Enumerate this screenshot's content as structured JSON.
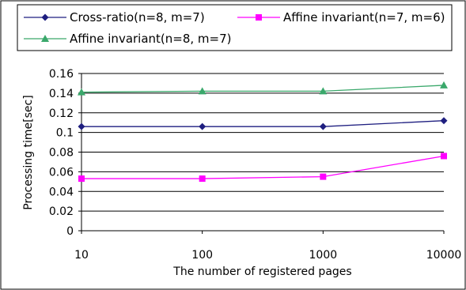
{
  "chart_data": {
    "type": "line",
    "x": [
      10,
      100,
      1000,
      10000
    ],
    "x_tick_labels": [
      "10",
      "100",
      "1000",
      "10000"
    ],
    "x_scale": "log",
    "xlabel": "The number of registered pages",
    "ylabel": "Processing time[sec]",
    "ylim": [
      0,
      0.16
    ],
    "y_ticks": [
      0,
      0.02,
      0.04,
      0.06,
      0.08,
      0.1,
      0.12,
      0.14,
      0.16
    ],
    "y_tick_labels": [
      "0",
      "0.02",
      "0.04",
      "0.06",
      "0.08",
      "0.1",
      "0.12",
      "0.14",
      "0.16"
    ],
    "grid": "horizontal",
    "legend_position": "top",
    "series": [
      {
        "name": "Cross-ratio(n=8, m=7)",
        "values": [
          0.106,
          0.106,
          0.106,
          0.112
        ],
        "color": "#1f1f80",
        "marker": "diamond"
      },
      {
        "name": "Affine invariant(n=7, m=6)",
        "values": [
          0.053,
          0.053,
          0.055,
          0.076
        ],
        "color": "#ff00ff",
        "marker": "square"
      },
      {
        "name": "Affine invariant(n=8, m=7)",
        "values": [
          0.141,
          0.142,
          0.142,
          0.148
        ],
        "color": "#3aa86b",
        "marker": "triangle"
      }
    ]
  }
}
